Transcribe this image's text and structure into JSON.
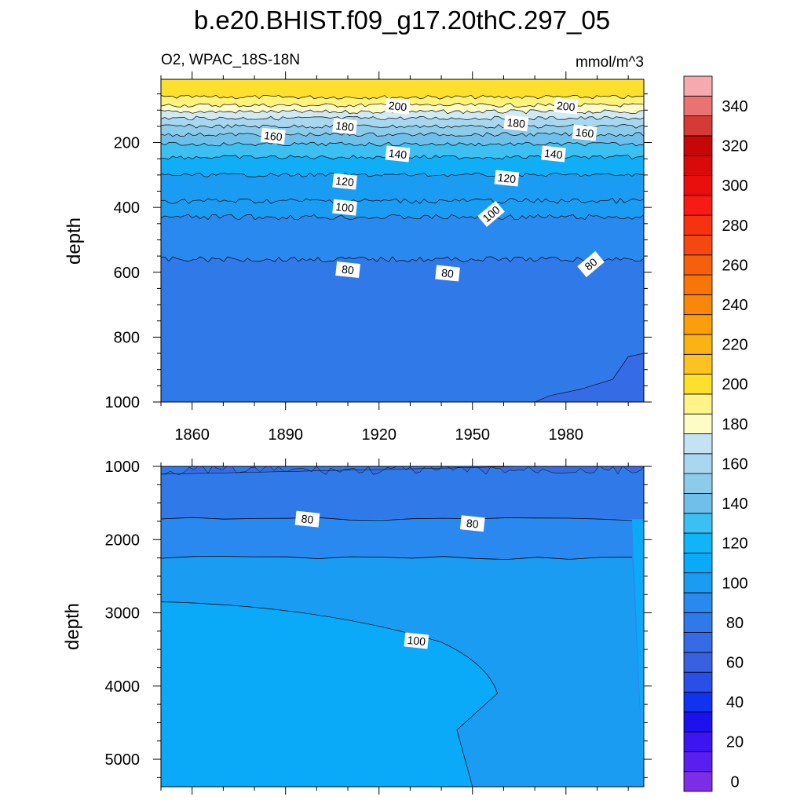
{
  "chart_data": {
    "type": "contour",
    "title": "b.e20.BHIST.f09_g17.20thC.297_05",
    "variable_label": "O2, WPAC_18S-18N",
    "units": "mmol/m^3",
    "x_axis": {
      "values": [
        1850,
        2005
      ],
      "ticks": [
        1860,
        1890,
        1920,
        1950,
        1980
      ],
      "tick_labels": [
        "1860",
        "1890",
        "1920",
        "1950",
        "1980"
      ]
    },
    "panels": [
      {
        "name": "upper",
        "ylabel": "depth",
        "ylim": [
          5,
          1000
        ],
        "y_ticks": [
          200,
          400,
          600,
          800,
          1000
        ],
        "y_tick_labels": [
          "200",
          "400",
          "600",
          "800",
          "1000"
        ],
        "bands": [
          {
            "value": 200,
            "depth_top": 5,
            "depth_bottom": 60,
            "color": "#fde02e"
          },
          {
            "value": 190,
            "depth_top": 60,
            "depth_bottom": 85,
            "color": "#fff27a"
          },
          {
            "value": 180,
            "depth_top": 85,
            "depth_bottom": 105,
            "color": "#fefcc6"
          },
          {
            "value": 170,
            "depth_top": 105,
            "depth_bottom": 125,
            "color": "#cfe9f5"
          },
          {
            "value": 160,
            "depth_top": 125,
            "depth_bottom": 150,
            "color": "#a8d7ef"
          },
          {
            "value": 150,
            "depth_top": 150,
            "depth_bottom": 175,
            "color": "#8ccbe9"
          },
          {
            "value": 140,
            "depth_top": 175,
            "depth_bottom": 205,
            "color": "#6ec0eb"
          },
          {
            "value": 130,
            "depth_top": 205,
            "depth_bottom": 245,
            "color": "#3cc0f2"
          },
          {
            "value": 120,
            "depth_top": 245,
            "depth_bottom": 300,
            "color": "#10aef7"
          },
          {
            "value": 110,
            "depth_top": 300,
            "depth_bottom": 380,
            "color": "#1b9cf3"
          },
          {
            "value": 100,
            "depth_top": 380,
            "depth_bottom": 430,
            "color": "#1b9cf3"
          },
          {
            "value": 90,
            "depth_top": 430,
            "depth_bottom": 560,
            "color": "#2a89ee"
          },
          {
            "value": 80,
            "depth_top": 560,
            "depth_bottom": 1000,
            "color": "#2f7ae8"
          },
          {
            "value": 70,
            "depth_top": 850,
            "depth_bottom": 1000,
            "color": "#356be4"
          }
        ],
        "contour_labels": [
          {
            "text": "200",
            "year": 1926,
            "depth": 88
          },
          {
            "text": "200",
            "year": 1980,
            "depth": 88
          },
          {
            "text": "180",
            "year": 1909,
            "depth": 150
          },
          {
            "text": "180",
            "year": 1964,
            "depth": 140
          },
          {
            "text": "160",
            "year": 1886,
            "depth": 180
          },
          {
            "text": "160",
            "year": 1986,
            "depth": 170
          },
          {
            "text": "140",
            "year": 1926,
            "depth": 235
          },
          {
            "text": "140",
            "year": 1976,
            "depth": 235
          },
          {
            "text": "120",
            "year": 1909,
            "depth": 320
          },
          {
            "text": "120",
            "year": 1961,
            "depth": 310
          },
          {
            "text": "100",
            "year": 1909,
            "depth": 400
          },
          {
            "text": "100",
            "year": 1956,
            "depth": 420
          },
          {
            "text": "80",
            "year": 1910,
            "depth": 592
          },
          {
            "text": "80",
            "year": 1942,
            "depth": 603
          },
          {
            "text": "80",
            "year": 1988,
            "depth": 575
          }
        ]
      },
      {
        "name": "lower",
        "ylabel": "depth",
        "ylim": [
          1000,
          5375
        ],
        "y_ticks": [
          1000,
          2000,
          3000,
          4000,
          5000
        ],
        "y_tick_labels": [
          "1000",
          "2000",
          "3000",
          "4000",
          "5000"
        ],
        "bands": [
          {
            "value": 70,
            "depth_top": 1000,
            "depth_bottom": 1720,
            "color": "#2f7ae8"
          },
          {
            "value": 80,
            "depth_top": 1720,
            "depth_bottom": 2250,
            "color": "#2a89ee"
          },
          {
            "value": 90,
            "depth_top": 2250,
            "depth_bottom": 5375,
            "color": "#1b9cf3"
          },
          {
            "value": 100,
            "depth_top": 2850,
            "depth_bottom": 5375,
            "color": "#0aaaf9"
          }
        ],
        "contour_labels": [
          {
            "text": "80",
            "year": 1897,
            "depth": 1720
          },
          {
            "text": "80",
            "year": 1950,
            "depth": 1780
          },
          {
            "text": "100",
            "year": 1932,
            "depth": 3380
          }
        ]
      }
    ],
    "colorbar": {
      "levels": [
        0,
        10,
        20,
        30,
        40,
        50,
        60,
        70,
        80,
        90,
        100,
        110,
        120,
        130,
        140,
        150,
        160,
        170,
        180,
        190,
        200,
        210,
        220,
        230,
        240,
        250,
        260,
        270,
        280,
        290,
        300,
        310,
        320,
        330,
        340,
        350
      ],
      "colors": [
        "#7b2ee5",
        "#5a1ef0",
        "#3d14f2",
        "#1c12f0",
        "#1133f0",
        "#2a4ee8",
        "#3a60e2",
        "#356be4",
        "#2f7ae8",
        "#2a89ee",
        "#1b9cf3",
        "#0aaaf9",
        "#10b4f7",
        "#3cc0f2",
        "#6ec0eb",
        "#8ccbe9",
        "#a8d7ef",
        "#c3e3f5",
        "#fefcc6",
        "#fff38a",
        "#fde02e",
        "#fcc221",
        "#fbb313",
        "#fa9e0c",
        "#f98709",
        "#f87508",
        "#f65f0c",
        "#f44810",
        "#f53311",
        "#f81a15",
        "#ec0d0d",
        "#d90a0a",
        "#c70707",
        "#d63a35",
        "#ea7270",
        "#f7aaad"
      ],
      "tick_labels": [
        "0",
        "20",
        "40",
        "60",
        "80",
        "100",
        "120",
        "140",
        "160",
        "180",
        "200",
        "220",
        "240",
        "260",
        "280",
        "300",
        "320",
        "340"
      ]
    }
  }
}
